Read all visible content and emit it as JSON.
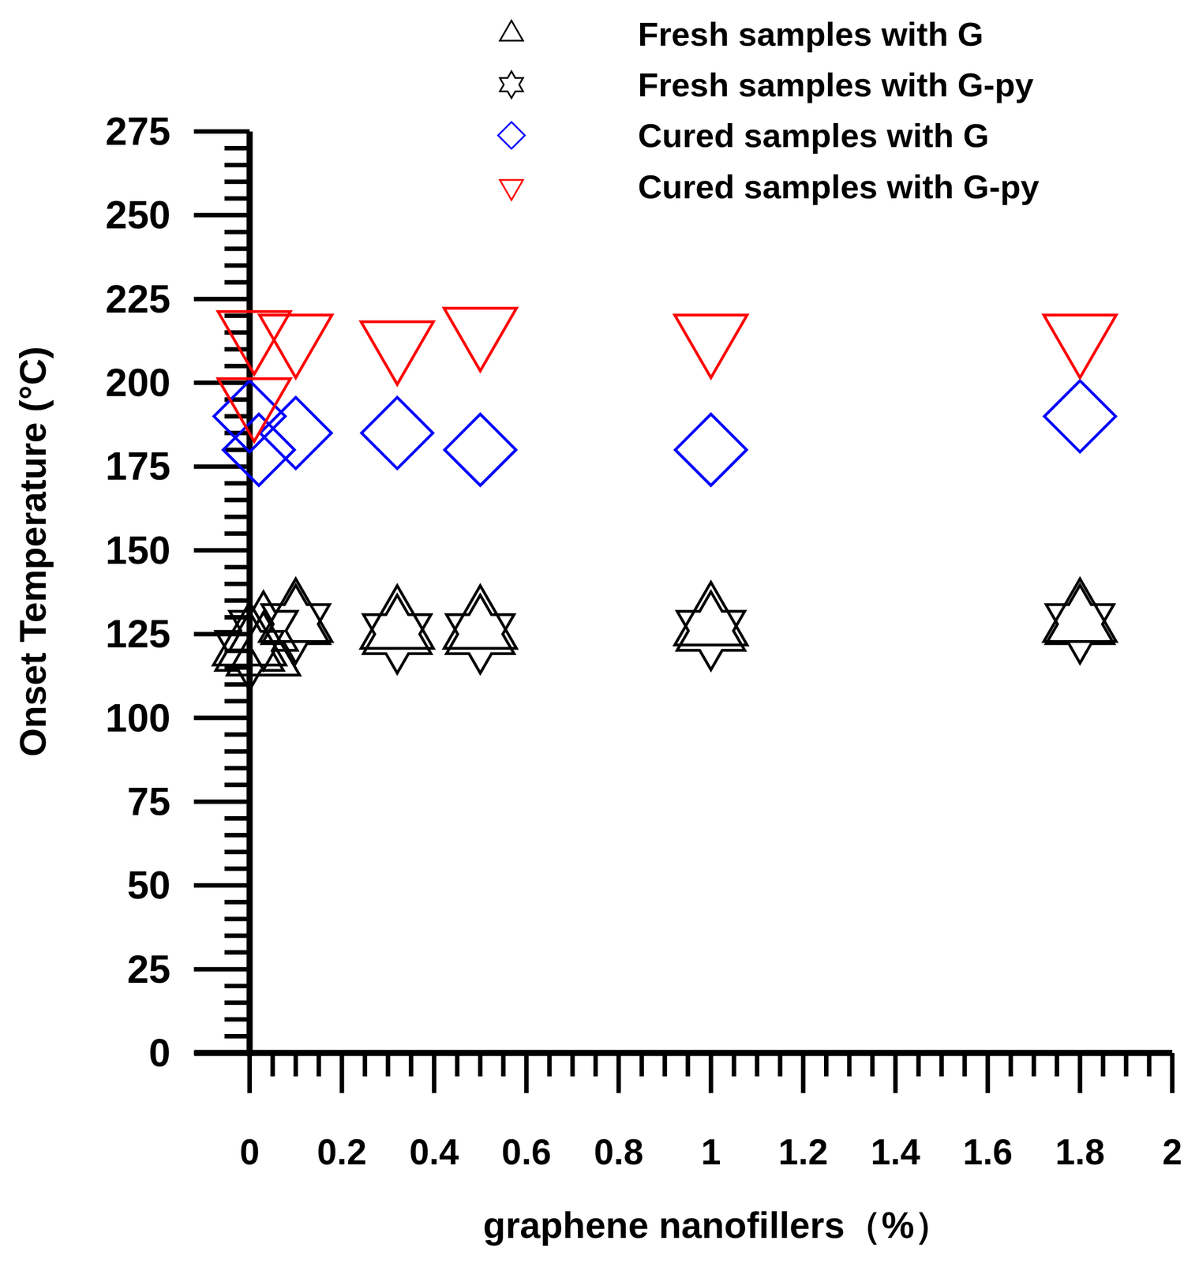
{
  "chart_data": {
    "type": "scatter",
    "x_label": "graphene nanofillers（%）",
    "y_label": "Onset Temperature  (°C)",
    "xlim": [
      -0.12,
      2
    ],
    "ylim": [
      0,
      275
    ],
    "xticks": [
      0,
      0.2,
      0.4,
      0.6,
      0.8,
      1,
      1.2,
      1.4,
      1.6,
      1.8,
      2
    ],
    "yticks": [
      0,
      25,
      50,
      75,
      100,
      125,
      150,
      175,
      200,
      225,
      250,
      275
    ],
    "grid": false,
    "legend": "top",
    "series": [
      {
        "name": "Fresh samples with G",
        "color": "#000000",
        "marker": "triangle-up",
        "x": [
          0,
          0.03,
          0.1,
          0.32,
          0.5,
          1,
          1.8
        ],
        "values": [
          122,
          119,
          129,
          127,
          127,
          128,
          129
        ]
      },
      {
        "name": "Fresh samples with G-py",
        "color": "#000000",
        "marker": "star",
        "x": [
          0,
          0.03,
          0.1,
          0.32,
          0.5,
          1,
          1.8
        ],
        "values": [
          120,
          126,
          128,
          125,
          125,
          126,
          128
        ]
      },
      {
        "name": "Cured samples with G",
        "color": "#0000ff",
        "marker": "diamond",
        "x": [
          0,
          0.02,
          0.1,
          0.32,
          0.5,
          1,
          1.8
        ],
        "values": [
          190,
          180,
          185,
          185,
          180,
          180,
          190
        ]
      },
      {
        "name": "Cured samples with G-py",
        "color": "#ff0000",
        "marker": "triangle-down",
        "x": [
          0.01,
          0.01,
          0.1,
          0.32,
          0.5,
          1,
          1.8
        ],
        "values": [
          215,
          195,
          214,
          212,
          216,
          214,
          214
        ]
      }
    ]
  }
}
